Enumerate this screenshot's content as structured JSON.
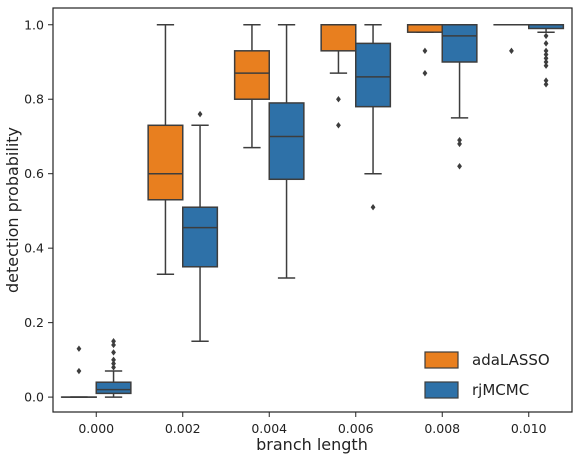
{
  "chart_data": {
    "type": "boxplot",
    "title": "",
    "xlabel": "branch length",
    "ylabel": "detection probability",
    "categories": [
      "0.000",
      "0.002",
      "0.004",
      "0.006",
      "0.008",
      "0.010"
    ],
    "ylim": [
      -0.04,
      1.045
    ],
    "yticks": [
      "0.0",
      "0.2",
      "0.4",
      "0.6",
      "0.8",
      "1.0"
    ],
    "grid": false,
    "legend_position": "bottom-right",
    "series": [
      {
        "name": "adaLASSO",
        "color": "#e87f1f",
        "boxes": [
          {
            "q1": 0.0,
            "median": 0.0,
            "q3": 0.0,
            "whisker_low": 0.0,
            "whisker_high": 0.0,
            "outliers": [
              0.07,
              0.13
            ]
          },
          {
            "q1": 0.53,
            "median": 0.6,
            "q3": 0.73,
            "whisker_low": 0.33,
            "whisker_high": 1.0,
            "outliers": []
          },
          {
            "q1": 0.8,
            "median": 0.87,
            "q3": 0.93,
            "whisker_low": 0.67,
            "whisker_high": 1.0,
            "outliers": []
          },
          {
            "q1": 0.93,
            "median": 1.0,
            "q3": 1.0,
            "whisker_low": 0.87,
            "whisker_high": 1.0,
            "outliers": [
              0.8,
              0.73
            ]
          },
          {
            "q1": 0.98,
            "median": 1.0,
            "q3": 1.0,
            "whisker_low": 0.98,
            "whisker_high": 1.0,
            "outliers": [
              0.93,
              0.87
            ]
          },
          {
            "q1": 1.0,
            "median": 1.0,
            "q3": 1.0,
            "whisker_low": 1.0,
            "whisker_high": 1.0,
            "outliers": [
              0.93
            ]
          }
        ]
      },
      {
        "name": "rjMCMC",
        "color": "#2e71a8",
        "boxes": [
          {
            "q1": 0.01,
            "median": 0.02,
            "q3": 0.04,
            "whisker_low": 0.0,
            "whisker_high": 0.07,
            "outliers": [
              0.08,
              0.09,
              0.1,
              0.12,
              0.14,
              0.15
            ]
          },
          {
            "q1": 0.35,
            "median": 0.455,
            "q3": 0.51,
            "whisker_low": 0.15,
            "whisker_high": 0.73,
            "outliers": [
              0.76
            ]
          },
          {
            "q1": 0.585,
            "median": 0.7,
            "q3": 0.79,
            "whisker_low": 0.32,
            "whisker_high": 1.0,
            "outliers": []
          },
          {
            "q1": 0.78,
            "median": 0.86,
            "q3": 0.95,
            "whisker_low": 0.6,
            "whisker_high": 1.0,
            "outliers": [
              0.51
            ]
          },
          {
            "q1": 0.9,
            "median": 0.97,
            "q3": 1.0,
            "whisker_low": 0.75,
            "whisker_high": 1.0,
            "outliers": [
              0.69,
              0.68,
              0.62
            ]
          },
          {
            "q1": 0.99,
            "median": 1.0,
            "q3": 1.0,
            "whisker_low": 0.98,
            "whisker_high": 1.0,
            "outliers": [
              0.97,
              0.95,
              0.93,
              0.92,
              0.91,
              0.9,
              0.89,
              0.85,
              0.84
            ]
          }
        ]
      }
    ]
  }
}
